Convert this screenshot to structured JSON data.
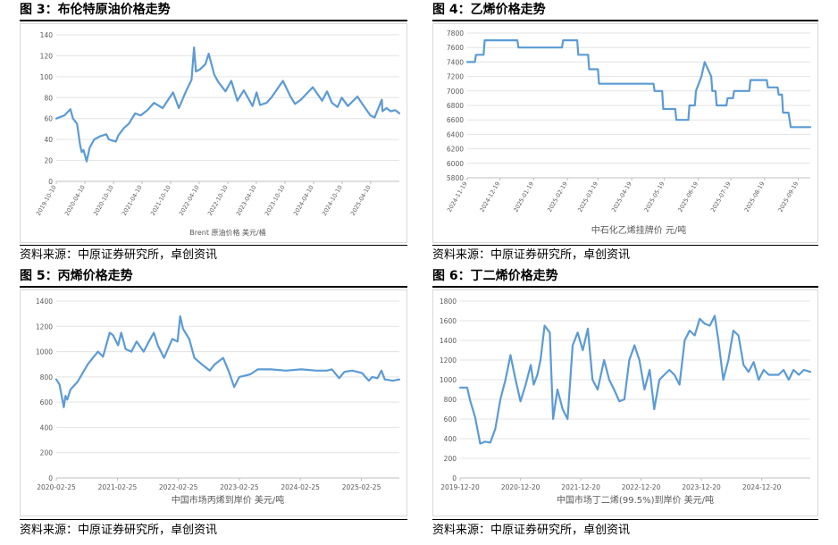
{
  "panels": [
    {
      "title": "图 3：布伦特原油价格走势",
      "source": "资料来源：中原证券研究所，卓创资讯",
      "chart_data": {
        "type": "line",
        "xlabel": "Brent 原油价格 美元/桶",
        "ylim": [
          0,
          140
        ],
        "yticks": [
          0,
          20,
          40,
          60,
          80,
          100,
          120,
          140
        ],
        "xlim": [
          "2019-10-10",
          "2025-10-10"
        ],
        "xticks": [
          "2019-10-10",
          "2020-04-10",
          "2020-10-10",
          "2021-04-10",
          "2021-10-10",
          "2022-04-10",
          "2022-10-10",
          "2023-04-10",
          "2023-10-10",
          "2024-04-10",
          "2024-10-10",
          "2025-04-10"
        ],
        "grid": true,
        "color": "#5b9bd5",
        "series": [
          {
            "x": [
              "2019-10-10",
              "2019-12-01",
              "2020-01-08",
              "2020-01-25",
              "2020-02-20",
              "2020-03-10",
              "2020-03-20",
              "2020-04-01",
              "2020-04-21",
              "2020-05-10",
              "2020-06-08",
              "2020-07-15",
              "2020-08-25",
              "2020-09-10",
              "2020-10-25",
              "2020-11-10",
              "2020-12-15",
              "2021-01-15",
              "2021-02-25",
              "2021-04-01",
              "2021-05-15",
              "2021-06-25",
              "2021-08-20",
              "2021-10-25",
              "2021-12-01",
              "2022-01-15",
              "2022-02-20",
              "2022-03-08",
              "2022-03-20",
              "2022-04-15",
              "2022-05-20",
              "2022-06-10",
              "2022-07-15",
              "2022-08-10",
              "2022-09-25",
              "2022-11-01",
              "2022-12-10",
              "2023-01-20",
              "2023-03-17",
              "2023-04-12",
              "2023-05-04",
              "2023-06-15",
              "2023-07-15",
              "2023-09-27",
              "2023-11-15",
              "2023-12-13",
              "2024-01-20",
              "2024-04-05",
              "2024-06-04",
              "2024-07-05",
              "2024-08-05",
              "2024-09-10",
              "2024-10-07",
              "2024-11-15",
              "2025-01-15",
              "2025-02-15",
              "2025-04-08",
              "2025-05-05",
              "2025-06-20",
              "2025-06-24",
              "2025-07-20",
              "2025-08-15",
              "2025-09-15",
              "2025-10-10"
            ],
            "y": [
              60,
              63,
              69,
              60,
              55,
              35,
              28,
              30,
              19,
              32,
              40,
              43,
              45,
              40,
              38,
              44,
              51,
              55,
              65,
              63,
              68,
              75,
              70,
              85,
              70,
              86,
              97,
              128,
              105,
              107,
              112,
              122,
              102,
              95,
              86,
              96,
              77,
              87,
              72,
              85,
              73,
              75,
              80,
              96,
              81,
              74,
              78,
              90,
              77,
              86,
              75,
              71,
              80,
              72,
              81,
              74,
              63,
              61,
              78,
              67,
              70,
              67,
              68,
              65
            ]
          }
        ]
      }
    },
    {
      "title": "图 4：乙烯价格走势",
      "source": "资料来源：中原证券研究所，卓创资讯",
      "chart_data": {
        "type": "line",
        "xlabel": "中石化乙烯挂牌价 元/吨",
        "ylim": [
          5800,
          7800
        ],
        "yticks": [
          5800,
          6000,
          6200,
          6400,
          6600,
          6800,
          7000,
          7200,
          7400,
          7600,
          7800
        ],
        "xlim": [
          "2024-11-19",
          "2025-09-30"
        ],
        "xticks": [
          "2024-11-19",
          "2024-12-19",
          "2025-01-19",
          "2025-02-19",
          "2025-03-19",
          "2025-04-19",
          "2025-05-19",
          "2025-06-19",
          "2025-07-19",
          "2025-08-19",
          "2025-09-19"
        ],
        "grid": true,
        "color": "#5b9bd5",
        "series": [
          {
            "x": [
              "2024-11-19",
              "2024-11-26",
              "2024-11-27",
              "2024-12-04",
              "2024-12-05",
              "2025-01-04",
              "2025-01-05",
              "2025-02-14",
              "2025-02-15",
              "2025-02-28",
              "2025-03-01",
              "2025-03-10",
              "2025-03-11",
              "2025-03-19",
              "2025-03-20",
              "2025-05-09",
              "2025-05-10",
              "2025-05-17",
              "2025-05-18",
              "2025-05-29",
              "2025-05-30",
              "2025-06-10",
              "2025-06-11",
              "2025-06-16",
              "2025-06-17",
              "2025-06-22",
              "2025-06-25",
              "2025-07-01",
              "2025-07-02",
              "2025-07-05",
              "2025-07-06",
              "2025-07-15",
              "2025-07-16",
              "2025-07-21",
              "2025-07-22",
              "2025-08-05",
              "2025-08-06",
              "2025-08-10",
              "2025-08-11",
              "2025-08-21",
              "2025-08-22",
              "2025-08-31",
              "2025-09-01",
              "2025-09-04",
              "2025-09-05",
              "2025-09-10",
              "2025-09-12",
              "2025-09-30"
            ],
            "y": [
              7400,
              7400,
              7500,
              7500,
              7700,
              7700,
              7600,
              7600,
              7700,
              7700,
              7500,
              7500,
              7300,
              7300,
              7100,
              7100,
              7000,
              7000,
              6750,
              6750,
              6600,
              6600,
              6800,
              6800,
              7000,
              7200,
              7400,
              7200,
              7000,
              7000,
              6800,
              6800,
              6900,
              6900,
              7000,
              7000,
              7150,
              7150,
              7150,
              7150,
              7050,
              7050,
              6950,
              6950,
              6700,
              6700,
              6500,
              6500
            ]
          }
        ]
      }
    },
    {
      "title": "图 5：丙烯价格走势",
      "source": "资料来源：中原证券研究所，卓创资讯",
      "chart_data": {
        "type": "line",
        "xlabel": "中国市场丙烯到岸价 美元/吨",
        "ylim": [
          0,
          1400
        ],
        "yticks": [
          0,
          200,
          400,
          600,
          800,
          1000,
          1200,
          1400
        ],
        "xlim": [
          "2020-02-25",
          "2025-10-10"
        ],
        "xticks": [
          "2020-02-25",
          "2021-02-25",
          "2022-02-25",
          "2023-02-25",
          "2024-02-25",
          "2025-02-25"
        ],
        "grid": true,
        "color": "#5b9bd5",
        "series": [
          {
            "x": [
              "2020-02-25",
              "2020-03-15",
              "2020-04-10",
              "2020-04-20",
              "2020-05-01",
              "2020-05-20",
              "2020-07-01",
              "2020-09-01",
              "2020-10-01",
              "2020-11-01",
              "2020-12-01",
              "2021-01-10",
              "2021-01-30",
              "2021-03-01",
              "2021-03-20",
              "2021-04-15",
              "2021-05-20",
              "2021-06-20",
              "2021-08-01",
              "2021-09-01",
              "2021-10-01",
              "2021-10-25",
              "2021-12-01",
              "2022-01-20",
              "2022-02-20",
              "2022-03-08",
              "2022-03-25",
              "2022-05-01",
              "2022-06-01",
              "2022-07-15",
              "2022-09-01",
              "2022-10-01",
              "2022-11-20",
              "2022-12-25",
              "2023-01-25",
              "2023-02-25",
              "2023-05-01",
              "2023-06-15",
              "2023-09-01",
              "2023-12-01",
              "2024-03-01",
              "2024-06-01",
              "2024-08-01",
              "2024-09-01",
              "2024-10-15",
              "2024-11-15",
              "2025-01-01",
              "2025-03-01",
              "2025-04-10",
              "2025-05-01",
              "2025-06-01",
              "2025-06-25",
              "2025-07-15",
              "2025-09-01",
              "2025-10-10"
            ],
            "y": [
              780,
              740,
              560,
              650,
              620,
              700,
              760,
              900,
              950,
              1000,
              960,
              1150,
              1130,
              1050,
              1150,
              1020,
              1000,
              1080,
              1000,
              1080,
              1150,
              1050,
              950,
              1100,
              1080,
              1280,
              1180,
              1100,
              950,
              900,
              850,
              900,
              950,
              840,
              720,
              800,
              820,
              860,
              860,
              850,
              860,
              850,
              850,
              860,
              790,
              840,
              850,
              830,
              770,
              800,
              790,
              850,
              780,
              770,
              780
            ]
          }
        ]
      }
    },
    {
      "title": "图 6：丁二烯价格走势",
      "source": "资料来源：中原证券研究所，卓创资讯",
      "chart_data": {
        "type": "line",
        "xlabel": "中国市场丁二烯(99.5%)到岸价 美元/吨",
        "ylim": [
          0,
          1800
        ],
        "yticks": [
          0,
          200,
          400,
          600,
          800,
          1000,
          1200,
          1400,
          1600,
          1800
        ],
        "xlim": [
          "2019-12-20",
          "2025-10-10"
        ],
        "xticks": [
          "2019-12-20",
          "2020-12-20",
          "2021-12-20",
          "2022-12-20",
          "2023-12-20",
          "2024-12-20"
        ],
        "grid": true,
        "color": "#5b9bd5",
        "series": [
          {
            "x": [
              "2019-12-20",
              "2020-02-01",
              "2020-02-20",
              "2020-03-20",
              "2020-04-20",
              "2020-05-20",
              "2020-06-20",
              "2020-07-20",
              "2020-08-20",
              "2020-09-20",
              "2020-10-20",
              "2020-11-20",
              "2020-12-20",
              "2021-01-20",
              "2021-02-20",
              "2021-03-10",
              "2021-04-01",
              "2021-04-20",
              "2021-05-15",
              "2021-06-15",
              "2021-07-05",
              "2021-08-01",
              "2021-09-01",
              "2021-10-01",
              "2021-11-01",
              "2021-12-01",
              "2022-01-01",
              "2022-02-01",
              "2022-03-01",
              "2022-04-01",
              "2022-05-10",
              "2022-06-10",
              "2022-07-10",
              "2022-08-10",
              "2022-09-10",
              "2022-10-10",
              "2022-11-10",
              "2022-12-10",
              "2023-01-10",
              "2023-02-10",
              "2023-03-10",
              "2023-04-10",
              "2023-05-10",
              "2023-06-10",
              "2023-07-10",
              "2023-08-10",
              "2023-09-10",
              "2023-10-10",
              "2023-11-10",
              "2023-12-10",
              "2024-01-10",
              "2024-02-10",
              "2024-03-10",
              "2024-04-01",
              "2024-05-01",
              "2024-06-01",
              "2024-07-01",
              "2024-08-01",
              "2024-09-01",
              "2024-10-01",
              "2024-11-01",
              "2024-12-01",
              "2025-01-01",
              "2025-02-01",
              "2025-03-01",
              "2025-04-01",
              "2025-05-01",
              "2025-06-01",
              "2025-07-01",
              "2025-08-01",
              "2025-09-01",
              "2025-10-10"
            ],
            "y": [
              920,
              920,
              780,
              620,
              350,
              370,
              360,
              500,
              800,
              1000,
              1250,
              1000,
              780,
              950,
              1150,
              950,
              1050,
              1200,
              1550,
              1480,
              600,
              900,
              700,
              600,
              1350,
              1480,
              1300,
              1520,
              1000,
              900,
              1200,
              1000,
              900,
              780,
              800,
              1200,
              1350,
              1200,
              900,
              1100,
              700,
              1000,
              1050,
              1100,
              1050,
              950,
              1400,
              1500,
              1450,
              1620,
              1570,
              1550,
              1650,
              1400,
              1000,
              1200,
              1500,
              1450,
              1150,
              1080,
              1180,
              1000,
              1100,
              1050,
              1050,
              1050,
              1100,
              1000,
              1100,
              1050,
              1100,
              1080
            ]
          }
        ]
      }
    }
  ]
}
